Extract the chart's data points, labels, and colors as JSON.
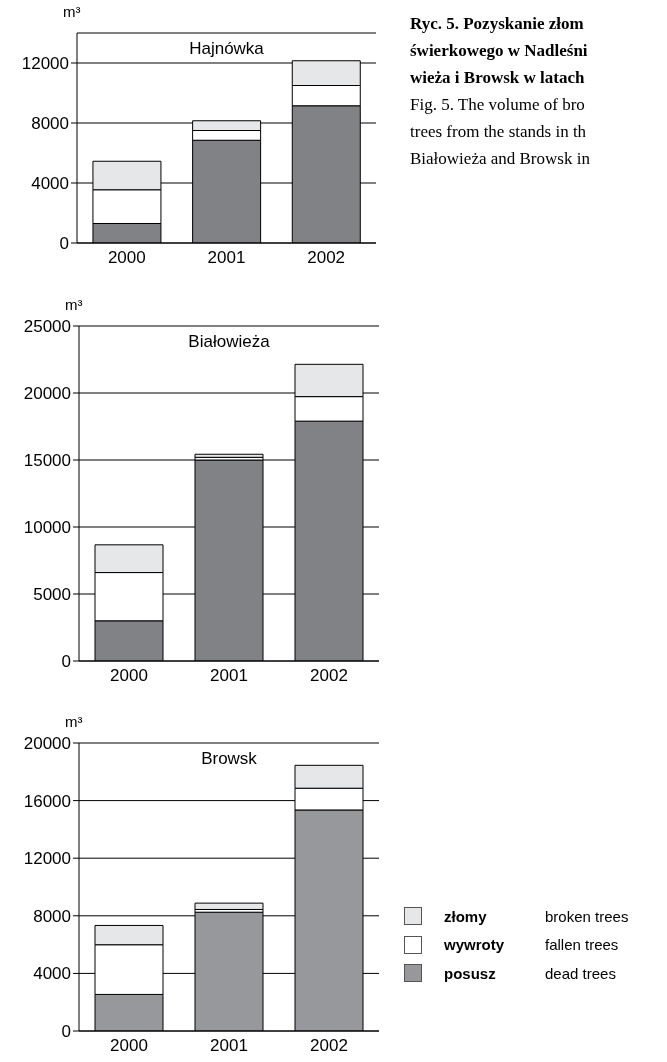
{
  "chart_data": [
    {
      "type": "bar",
      "title": "Hajnówka",
      "ylabel": "m³",
      "categories": [
        "2000",
        "2001",
        "2002"
      ],
      "stacked": true,
      "ylim": [
        0,
        14000
      ],
      "yticks": [
        0,
        4000,
        8000,
        12000
      ],
      "grid": "y",
      "annotations": [
        "Ryc. 5. Pozyskanie złom\nświerkowego w Nadleśni\nwieża i Browsk w latach",
        "Fig. 5. The volume of bro\ntrees from the stands in th\nBiałowieża and Browsk in"
      ],
      "series": [
        {
          "color": "#808285",
          "values": [
            1300,
            6850,
            9150
          ]
        },
        {
          "color": "#ffffff",
          "values": [
            2250,
            650,
            1350
          ]
        },
        {
          "color": "#e6e7e8",
          "values": [
            1900,
            650,
            1650
          ]
        }
      ]
    },
    {
      "type": "bar",
      "title": "Białowieża",
      "ylabel": "m³",
      "categories": [
        "2000",
        "2001",
        "2002"
      ],
      "stacked": true,
      "ylim": [
        0,
        25000
      ],
      "yticks": [
        0,
        5000,
        10000,
        15000,
        20000,
        25000
      ],
      "grid": "y",
      "series": [
        {
          "color": "#808285",
          "values": [
            3000,
            15000,
            17900
          ]
        },
        {
          "color": "#ffffff",
          "values": [
            3600,
            200,
            1830
          ]
        },
        {
          "color": "#e6e7e8",
          "values": [
            2070,
            230,
            2410
          ]
        }
      ]
    },
    {
      "type": "bar",
      "title": "Browsk",
      "ylabel": "m³",
      "categories": [
        "2000",
        "2001",
        "2002"
      ],
      "stacked": true,
      "ylim": [
        0,
        20000
      ],
      "yticks": [
        0,
        4000,
        8000,
        12000,
        16000,
        20000
      ],
      "grid": "y",
      "legend": "bottom right",
      "annotations": [
        "broken trees",
        "fallen trees",
        "dead trees"
      ],
      "series": [
        {
          "name": "posusz",
          "color": "#97989b",
          "values": [
            2540,
            8250,
            15350
          ]
        },
        {
          "name": "wywroty",
          "color": "#ffffff",
          "values": [
            3450,
            190,
            1510
          ]
        },
        {
          "name": "złomy",
          "color": "#e6e7e8",
          "values": [
            1340,
            440,
            1590
          ]
        }
      ]
    }
  ]
}
